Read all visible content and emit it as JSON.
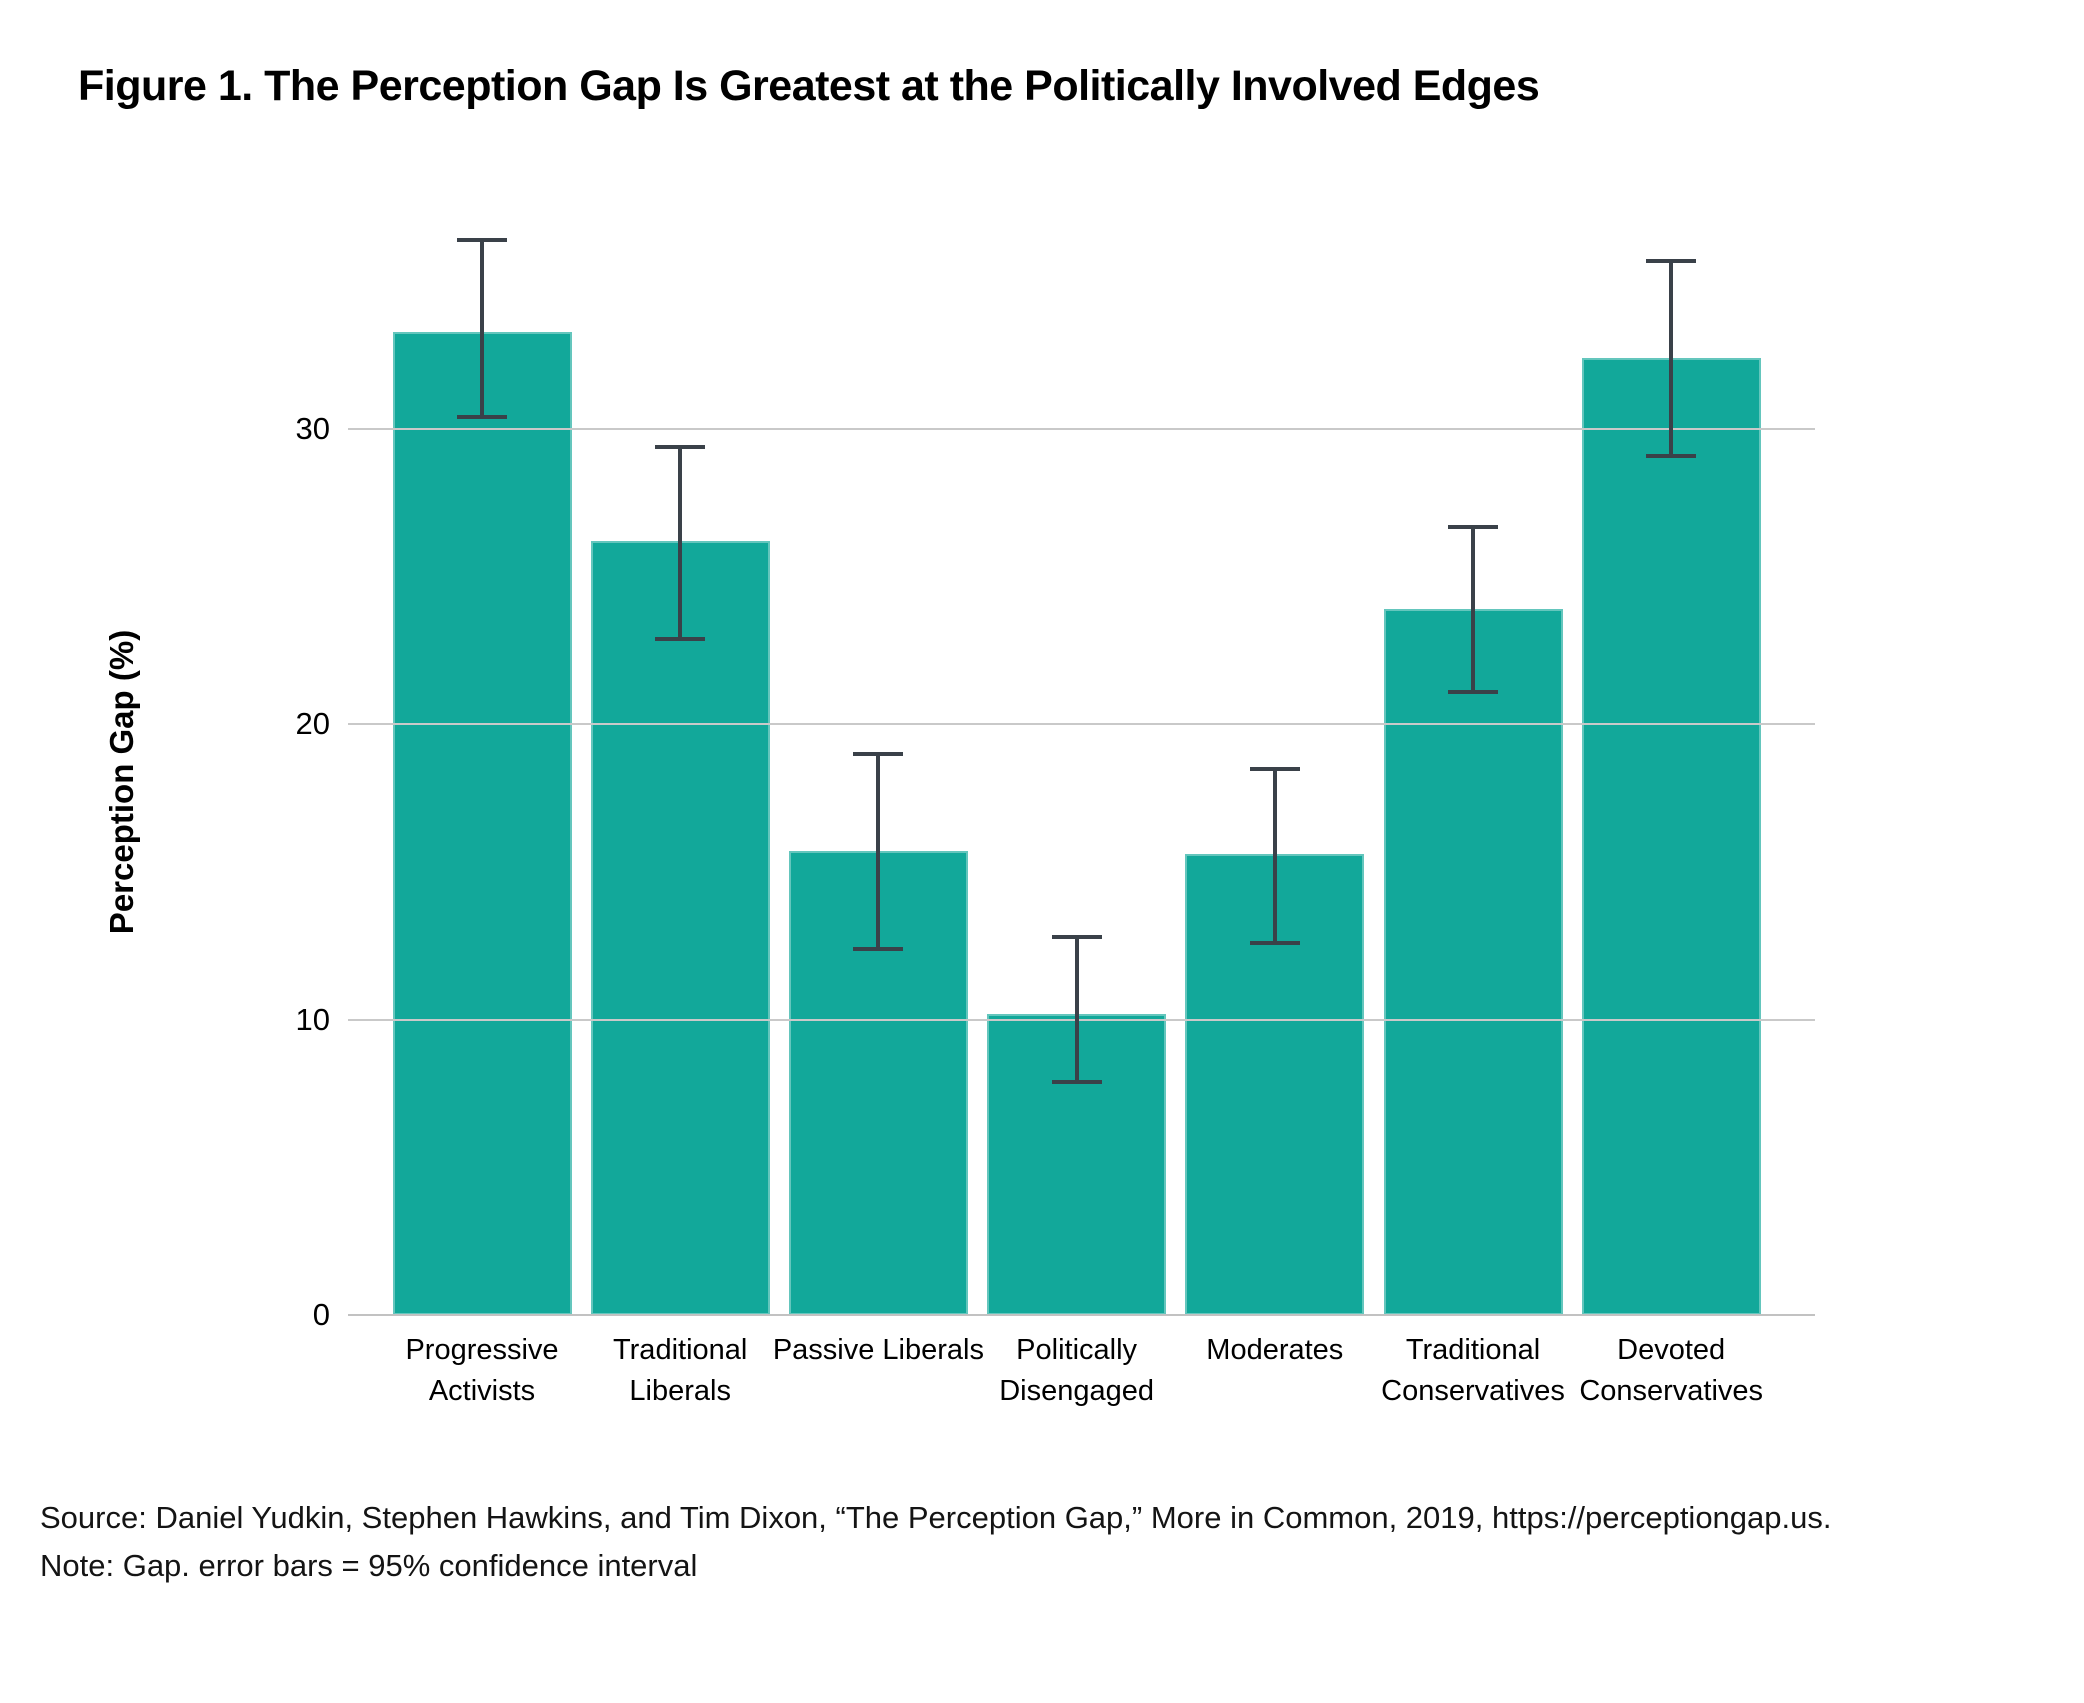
{
  "figure": {
    "title": "Figure 1. The Perception Gap Is Greatest at the Politically Involved Edges",
    "source_line": "Source: Daniel Yudkin, Stephen Hawkins, and Tim Dixon, “The Perception Gap,” More in Common, 2019, https://perceptiongap.us.",
    "note_line": "Note: Gap. error bars = 95% confidence interval"
  },
  "chart_data": {
    "type": "bar",
    "title": "Figure 1. The Perception Gap Is Greatest at the Politically Involved Edges",
    "xlabel": "",
    "ylabel": "Perception Gap (%)",
    "yticks": [
      0,
      10,
      20,
      30
    ],
    "ylim": [
      0,
      38.8
    ],
    "grid": "horizontal-gridlines-over-bars",
    "legend_position": "none",
    "error_bars": "95% confidence interval",
    "categories": [
      "Progressive Activists",
      "Traditional Liberals",
      "Passive Liberals",
      "Politically Disengaged",
      "Moderates",
      "Traditional Conservatives",
      "Devoted Conservatives"
    ],
    "values": [
      33.3,
      26.2,
      15.7,
      10.2,
      15.6,
      23.9,
      32.4
    ],
    "ci_low": [
      30.4,
      22.9,
      12.4,
      7.9,
      12.6,
      21.1,
      29.1
    ],
    "ci_high": [
      36.4,
      29.4,
      19.0,
      12.8,
      18.5,
      26.7,
      35.7
    ],
    "bar_color": "#12a89a",
    "error_bar_color": "#3a4149",
    "gridline_color": "#c9c9c9",
    "text_color": "#000000"
  }
}
